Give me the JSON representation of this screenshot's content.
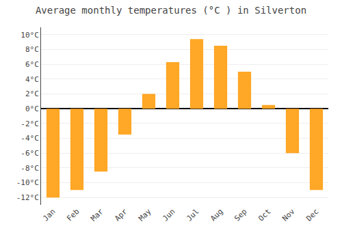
{
  "chart_data": {
    "type": "bar",
    "title": "Average monthly temperatures (°C ) in Silverton",
    "categories": [
      "Jan",
      "Feb",
      "Mar",
      "Apr",
      "May",
      "Jun",
      "Jul",
      "Aug",
      "Sep",
      "Oct",
      "Nov",
      "Dec"
    ],
    "values": [
      -12,
      -11,
      -8.5,
      -3.5,
      2,
      6.3,
      9.4,
      8.5,
      5.0,
      0.5,
      -6,
      -11
    ],
    "color": "#FFA726",
    "ylim": [
      -13,
      11
    ],
    "yticks": [
      {
        "value": -12,
        "label": "-12°C"
      },
      {
        "value": -10,
        "label": "-10°C"
      },
      {
        "value": -8,
        "label": "-8°C"
      },
      {
        "value": -6,
        "label": "-6°C"
      },
      {
        "value": -4,
        "label": "-4°C"
      },
      {
        "value": -2,
        "label": "-2°C"
      },
      {
        "value": 0,
        "label": "0°C"
      },
      {
        "value": 2,
        "label": "2°C"
      },
      {
        "value": 4,
        "label": "4°C"
      },
      {
        "value": 6,
        "label": "6°C"
      },
      {
        "value": 8,
        "label": "8°C"
      },
      {
        "value": 10,
        "label": "10°C"
      }
    ],
    "grid": true
  }
}
